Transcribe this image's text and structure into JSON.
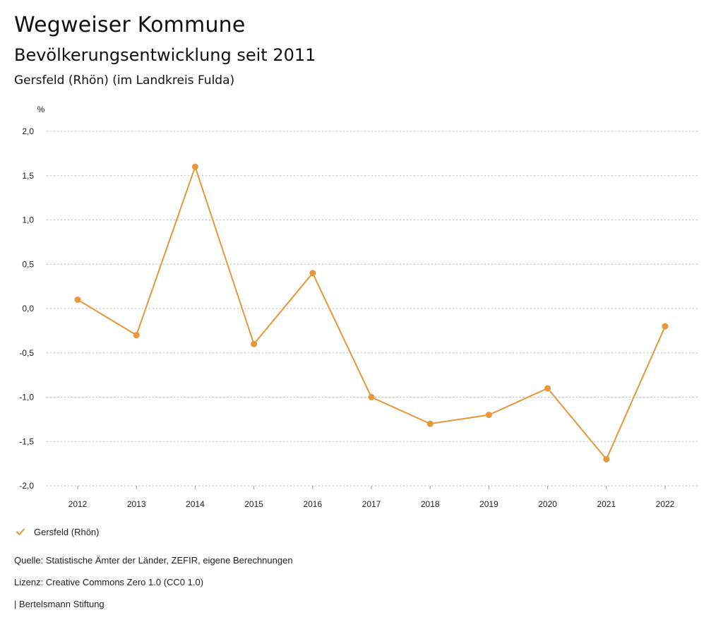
{
  "header": {
    "title": "Wegweiser Kommune",
    "subtitle": "Bevölkerungsentwicklung seit 2011",
    "region": "Gersfeld (Rhön) (im Landkreis Fulda)"
  },
  "chart_data": {
    "type": "line",
    "title": "Bevölkerungsentwicklung seit 2011",
    "xlabel": "",
    "ylabel": "%",
    "categories": [
      "2012",
      "2013",
      "2014",
      "2015",
      "2016",
      "2017",
      "2018",
      "2019",
      "2020",
      "2021",
      "2022"
    ],
    "series": [
      {
        "name": "Gersfeld (Rhön)",
        "color": "#E8963A",
        "values": [
          0.1,
          -0.3,
          1.6,
          -0.4,
          0.4,
          -1.0,
          -1.3,
          -1.2,
          -0.9,
          -1.7,
          -0.2
        ]
      }
    ],
    "ylim": [
      -2.0,
      2.0
    ],
    "yticks": [
      2.0,
      1.5,
      1.0,
      0.5,
      0.0,
      -0.5,
      -1.0,
      -1.5,
      -2.0
    ],
    "ytick_labels": [
      "2,0",
      "1,5",
      "1,0",
      "0,5",
      "0,0",
      "-0,5",
      "-1,0",
      "-1,5",
      "-2,0"
    ],
    "grid": true,
    "legend": "bottom-left"
  },
  "legend": {
    "label": "Gersfeld (Rhön)",
    "icon": "check-icon"
  },
  "footer": {
    "source": "Quelle: Statistische Ämter der Länder, ZEFIR, eigene Berechnungen",
    "license": "Lizenz: Creative Commons Zero 1.0 (CC0 1.0)",
    "publisher": "| Bertelsmann Stiftung"
  }
}
